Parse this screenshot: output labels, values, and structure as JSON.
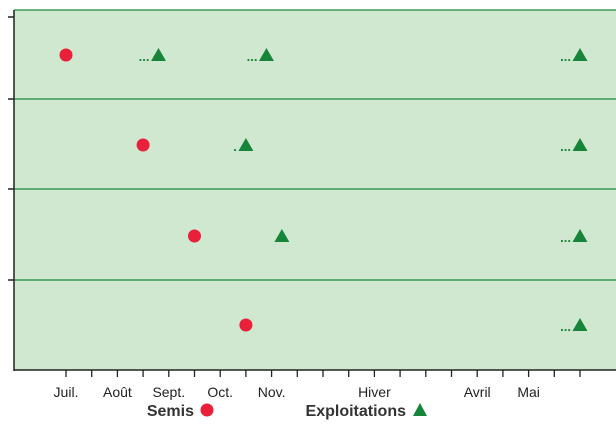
{
  "chart_data": {
    "type": "scatter",
    "title": "",
    "xlabel": "",
    "ylabel": "",
    "categories": [
      "Juil.",
      "Août",
      "Sept.",
      "Oct.",
      "Nov.",
      "Hiver",
      "Avril",
      "Mai"
    ],
    "x_ticks": [
      "Juil.",
      "",
      "Août",
      "",
      "Sept.",
      "",
      "Oct.",
      "",
      "Nov.",
      "",
      "",
      "",
      "Hiver",
      "",
      "",
      "",
      "Avril",
      "",
      "Mai",
      "",
      ""
    ],
    "rows": [
      {
        "semis": 0.0,
        "exploitations": [
          1.8,
          3.9,
          10.0
        ],
        "dots": [
          "...",
          "...",
          "..."
        ]
      },
      {
        "semis": 1.5,
        "exploitations": [
          3.5,
          10.0
        ],
        "dots": [
          ".",
          "..."
        ]
      },
      {
        "semis": 2.5,
        "exploitations": [
          4.2,
          10.0
        ],
        "dots": [
          "",
          "..."
        ]
      },
      {
        "semis": 3.5,
        "exploitations": [
          10.0
        ],
        "dots": [
          "..."
        ]
      }
    ],
    "legend": {
      "semis_label": "Semis",
      "exploitations_label": "Exploitations"
    },
    "colors": {
      "background": "#cfe8cf",
      "grid": "#1a8c3a",
      "semis": "#e8203a",
      "exploitations": "#16853a",
      "axis": "#222222"
    },
    "grid": true
  }
}
